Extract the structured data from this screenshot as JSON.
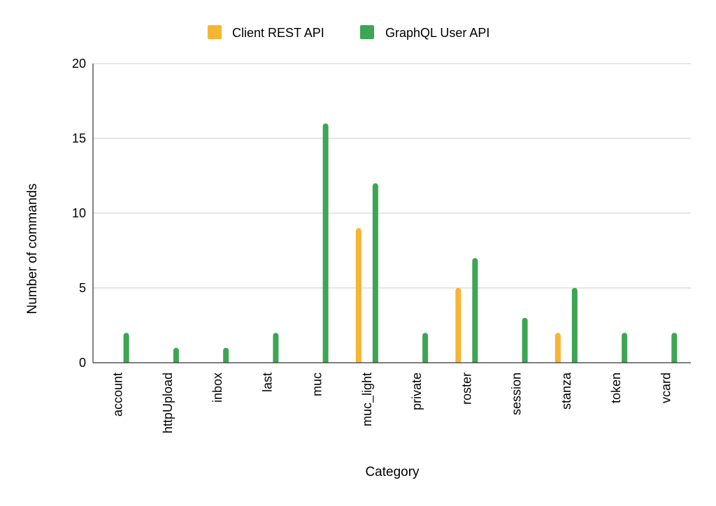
{
  "chart_data": {
    "type": "bar",
    "categories": [
      "account",
      "httpUpload",
      "inbox",
      "last",
      "muc",
      "muc_light",
      "private",
      "roster",
      "session",
      "stanza",
      "token",
      "vcard"
    ],
    "series": [
      {
        "name": "Client REST API",
        "color": "#F6B533",
        "values": [
          0,
          0,
          0,
          0,
          0,
          9,
          0,
          5,
          0,
          2,
          0,
          0
        ]
      },
      {
        "name": "GraphQL User API",
        "color": "#3DA554",
        "values": [
          2,
          1,
          1,
          2,
          16,
          12,
          2,
          7,
          3,
          5,
          2,
          2
        ]
      }
    ],
    "xlabel": "Category",
    "ylabel": "Number of commands",
    "ylim": [
      0,
      20
    ],
    "yticks": [
      0,
      5,
      10,
      15,
      20
    ],
    "grid": true,
    "legend": "top-center"
  }
}
